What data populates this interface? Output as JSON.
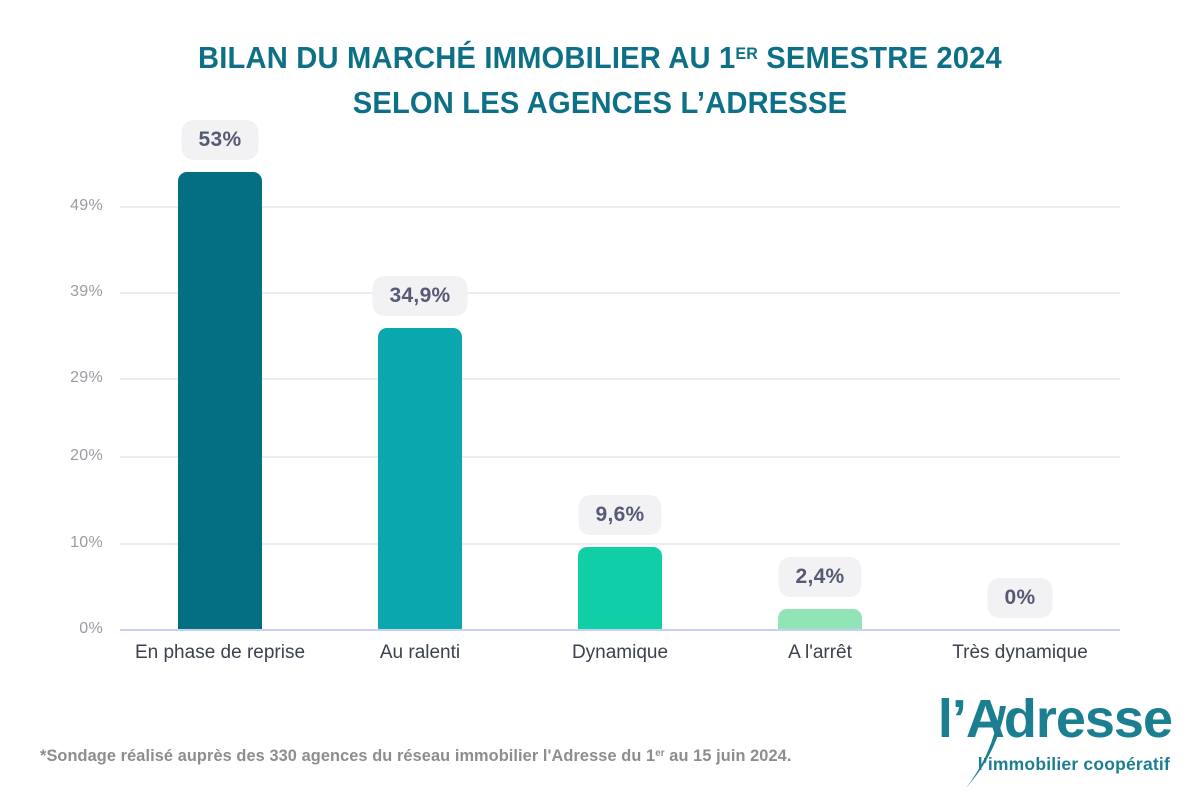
{
  "title": {
    "line1_prefix": "BILAN DU MARCHÉ IMMOBILIER AU 1",
    "line1_sup": "ER",
    "line1_suffix": " SEMESTRE 2024",
    "line2": "SELON LES AGENCES L’ADRESSE",
    "color": "#0d7086"
  },
  "chart_data": {
    "type": "bar",
    "title": "BILAN DU MARCHÉ IMMOBILIER AU 1ER SEMESTRE 2024 SELON LES AGENCES L'ADRESSE",
    "categories": [
      "En phase de reprise",
      "Au ralenti",
      "Dynamique",
      "A l'arrêt",
      "Très dynamique"
    ],
    "values": [
      53,
      34.9,
      9.6,
      2.4,
      0
    ],
    "value_labels": [
      "53%",
      "34,9%",
      "9,6%",
      "2,4%",
      "0%"
    ],
    "bar_colors": [
      "#036f81",
      "#0aa8ae",
      "#10cfa6",
      "#8fe5b5",
      "#8fe5b5"
    ],
    "y_ticks": [
      {
        "value": 0,
        "label": "0%"
      },
      {
        "value": 10,
        "label": "10%"
      },
      {
        "value": 20,
        "label": "20%"
      },
      {
        "value": 29,
        "label": "29%"
      },
      {
        "value": 39,
        "label": "39%"
      },
      {
        "value": 49,
        "label": "49%"
      }
    ],
    "ylim": [
      0,
      55
    ],
    "grid": true,
    "legend": "none",
    "colors": {
      "grid": "#ececee",
      "baseline": "#c9cfee",
      "tick_text": "#9b9ba3",
      "category_text": "#3b414d",
      "badge_bg": "#f2f2f4",
      "badge_text": "#565a74"
    }
  },
  "footer": {
    "note_prefix": "*Sondage réalisé auprès des 330 agences du réseau immobilier l'Adresse du 1",
    "note_sup": "er",
    "note_suffix": " au 15 juin 2024."
  },
  "logo": {
    "name": "l’Adresse",
    "tagline": "l’immobilier coopératif",
    "color": "#1b7e91"
  }
}
